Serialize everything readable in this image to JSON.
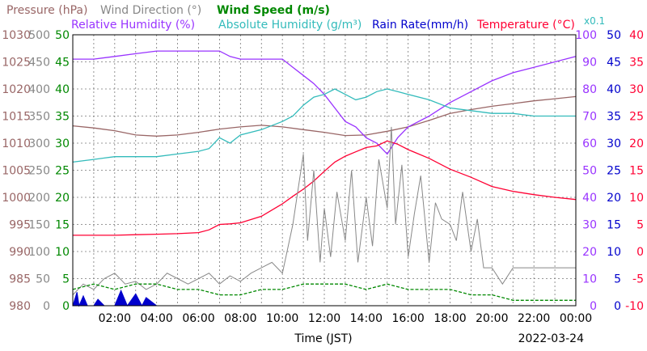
{
  "chart_data": {
    "type": "line",
    "date_label": "2022-03-24",
    "xlabel": "Time (JST)",
    "x_ticks": [
      "02:00",
      "04:00",
      "06:00",
      "08:00",
      "10:00",
      "12:00",
      "14:00",
      "16:00",
      "18:00",
      "20:00",
      "22:00",
      "00:00"
    ],
    "x_range_hours": [
      0,
      24
    ],
    "legend": [
      {
        "text": "Pressure (hPa)",
        "color": "#996666"
      },
      {
        "text": "Wind Direction (°)",
        "color": "#888888"
      },
      {
        "text": "Wind Speed (m/s)",
        "color": "#008800"
      },
      {
        "text": "Relative Humidity (%)",
        "color": "#9933ff"
      },
      {
        "text": "Absolute Humidity (g/m³)",
        "color": "#33bbbb"
      },
      {
        "text": "Rain Rate(mm/h)",
        "color": "#0000cc"
      },
      {
        "text": "Temperature (°C)",
        "color": "#ff0033"
      },
      {
        "text": "x0.1",
        "color": "#33bbbb"
      }
    ],
    "axes": {
      "pressure": {
        "ticks": [
          "980",
          "985",
          "990",
          "995",
          "1000",
          "1005",
          "1010",
          "1015",
          "1020",
          "1025",
          "1030"
        ],
        "color": "#996666",
        "range": [
          980,
          1030
        ]
      },
      "wind_direction": {
        "ticks": [
          "0",
          "50",
          "100",
          "150",
          "200",
          "250",
          "300",
          "350",
          "400",
          "450",
          "500"
        ],
        "color": "#888888",
        "range": [
          0,
          500
        ]
      },
      "wind_speed": {
        "ticks": [
          "0",
          "5",
          "10",
          "15",
          "20",
          "25",
          "30",
          "35",
          "40",
          "45",
          "50"
        ],
        "color": "#008800",
        "range": [
          0,
          50
        ]
      },
      "humidity": {
        "ticks": [
          "0",
          "10",
          "20",
          "30",
          "40",
          "50",
          "60",
          "70",
          "80",
          "90",
          "100"
        ],
        "color": "#9933ff",
        "range": [
          0,
          100
        ]
      },
      "rain_rate": {
        "ticks": [
          "0",
          "5",
          "10",
          "15",
          "20",
          "25",
          "30",
          "35",
          "40",
          "45",
          "50"
        ],
        "color": "#0000cc",
        "range": [
          0,
          50
        ]
      },
      "temperature": {
        "ticks": [
          "-10",
          "-5",
          "0",
          "5",
          "10",
          "15",
          "20",
          "25",
          "30",
          "35",
          "40"
        ],
        "color": "#ff0033",
        "range": [
          -10,
          40
        ]
      }
    },
    "series": [
      {
        "key": "pressure",
        "axis": "pressure",
        "color": "#996666",
        "x": [
          0,
          1,
          2,
          3,
          4,
          5,
          6,
          7,
          8,
          9,
          10,
          11,
          12,
          13,
          14,
          15,
          16,
          17,
          18,
          19,
          20,
          21,
          22,
          23,
          24
        ],
        "y": [
          1013.2,
          1012.8,
          1012.3,
          1011.5,
          1011.3,
          1011.5,
          1012.0,
          1012.6,
          1013.0,
          1013.3,
          1013.0,
          1012.5,
          1012.0,
          1011.4,
          1011.5,
          1012.2,
          1013.0,
          1014.2,
          1015.5,
          1016.2,
          1016.8,
          1017.3,
          1017.8,
          1018.2,
          1018.6
        ]
      },
      {
        "key": "relative_humidity",
        "axis": "humidity",
        "color": "#9933ff",
        "x": [
          0,
          1,
          2,
          3,
          4,
          5,
          6,
          6.5,
          7,
          7.5,
          8,
          9,
          10,
          10.5,
          11,
          11.5,
          12,
          12.5,
          13,
          13.5,
          14,
          14.5,
          15,
          15.5,
          16,
          17,
          18,
          19,
          20,
          21,
          22,
          23,
          24
        ],
        "y": [
          91,
          91,
          92,
          93,
          94,
          94,
          94,
          94,
          94,
          92,
          91,
          91,
          91,
          88,
          85,
          82,
          78,
          73,
          68,
          66,
          62,
          60,
          56,
          62,
          66,
          70,
          75,
          79,
          83,
          86,
          88,
          90,
          92
        ]
      },
      {
        "key": "absolute_humidity",
        "axis": "humidity",
        "color": "#33bbbb",
        "x": [
          0,
          1,
          2,
          3,
          4,
          5,
          6,
          6.5,
          7,
          7.5,
          8,
          9,
          10,
          10.5,
          11,
          11.5,
          12,
          12.5,
          13,
          13.5,
          14,
          14.5,
          15,
          15.5,
          16,
          17,
          18,
          19,
          20,
          21,
          22,
          23,
          24
        ],
        "y": [
          53,
          54,
          55,
          55,
          55,
          56,
          57,
          58,
          62,
          60,
          63,
          65,
          68,
          70,
          74,
          77,
          78,
          80,
          78,
          76,
          77,
          79,
          80,
          79,
          78,
          76,
          73,
          72,
          71,
          71,
          70,
          70,
          70
        ]
      },
      {
        "key": "temperature",
        "axis": "temperature",
        "color": "#ff0033",
        "x": [
          0,
          1,
          2,
          3,
          4,
          5,
          6,
          6.5,
          7,
          7.5,
          8,
          9,
          10,
          10.5,
          11,
          11.5,
          12,
          12.5,
          13,
          13.5,
          14,
          14.5,
          15,
          15.5,
          16,
          17,
          18,
          19,
          20,
          21,
          22,
          23,
          24
        ],
        "y": [
          3.0,
          3.0,
          3.0,
          3.1,
          3.2,
          3.3,
          3.5,
          4.0,
          5.0,
          5.1,
          5.3,
          6.5,
          8.8,
          10.2,
          11.5,
          13.0,
          14.8,
          16.5,
          17.6,
          18.4,
          19.2,
          19.5,
          20.4,
          19.8,
          18.8,
          17.2,
          15.2,
          13.7,
          12.0,
          11.1,
          10.5,
          10.0,
          9.6
        ]
      },
      {
        "key": "wind_direction",
        "axis": "wind_direction",
        "color": "#888888",
        "x": [
          0,
          0.5,
          1,
          1.5,
          2,
          2.5,
          3,
          3.5,
          4,
          4.5,
          5,
          5.5,
          6,
          6.5,
          7,
          7.5,
          8,
          8.5,
          9,
          9.5,
          10,
          10.5,
          11,
          11.2,
          11.5,
          11.8,
          12,
          12.3,
          12.6,
          13,
          13.3,
          13.6,
          14,
          14.3,
          14.6,
          15,
          15.2,
          15.4,
          15.7,
          16,
          16.3,
          16.6,
          17,
          17.3,
          17.6,
          18,
          18.3,
          18.6,
          19,
          19.3,
          19.6,
          20,
          20.5,
          21,
          22,
          23,
          24
        ],
        "y": [
          20,
          40,
          30,
          50,
          60,
          40,
          45,
          30,
          40,
          60,
          50,
          40,
          50,
          60,
          40,
          55,
          45,
          60,
          70,
          80,
          60,
          150,
          280,
          120,
          250,
          80,
          180,
          90,
          210,
          120,
          250,
          80,
          200,
          110,
          270,
          180,
          330,
          150,
          260,
          90,
          170,
          240,
          80,
          190,
          160,
          150,
          120,
          210,
          100,
          160,
          70,
          70,
          40,
          70,
          70,
          70,
          70
        ]
      },
      {
        "key": "wind_speed",
        "axis": "wind_speed",
        "color": "#008800",
        "x": [
          0,
          1,
          2,
          3,
          4,
          5,
          6,
          7,
          8,
          9,
          10,
          11,
          12,
          13,
          14,
          15,
          16,
          17,
          18,
          19,
          20,
          21,
          22,
          23,
          24
        ],
        "y": [
          3,
          4,
          3,
          4,
          4,
          3,
          3,
          2,
          2,
          3,
          3,
          4,
          4,
          4,
          3,
          4,
          3,
          3,
          3,
          2,
          2,
          1,
          1,
          1,
          1
        ]
      },
      {
        "key": "rain_rate",
        "axis": "rain_rate",
        "color": "#0000cc",
        "x": [
          0,
          0.2,
          0.3,
          0.5,
          0.7,
          1.0,
          1.2,
          1.5,
          1.7,
          2.0,
          2.3,
          2.6,
          3.0,
          3.3,
          3.5,
          4.0,
          24
        ],
        "y": [
          0,
          2.5,
          0,
          1.8,
          0,
          0,
          1.2,
          0,
          0,
          0,
          2.8,
          0,
          2.2,
          0,
          1.5,
          0,
          0
        ]
      }
    ]
  }
}
